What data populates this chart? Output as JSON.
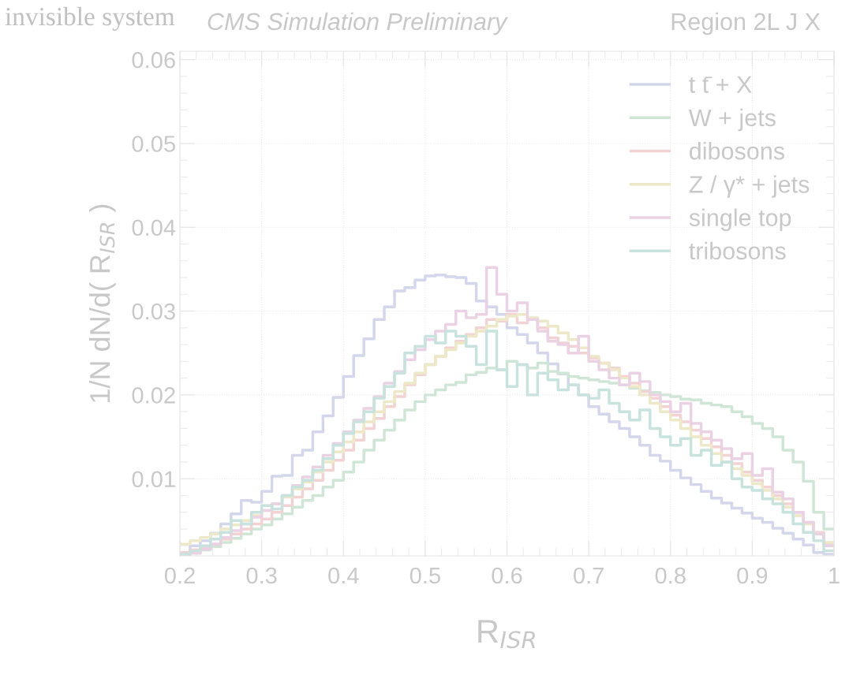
{
  "chart_data": {
    "type": "histogram",
    "title": "CMS Simulation Preliminary",
    "subtitle": "Region 2L J X",
    "annotations": [
      "invisible system"
    ],
    "xlabel": "R$_{ISR}$",
    "ylabel": "1/N dN/d( R$_{ISR}$ )",
    "bins": [
      0.2,
      0.2125,
      0.225,
      0.2375,
      0.25,
      0.2625,
      0.275,
      0.2875,
      0.3,
      0.3125,
      0.325,
      0.3375,
      0.35,
      0.3625,
      0.375,
      0.3875,
      0.4,
      0.4125,
      0.425,
      0.4375,
      0.45,
      0.4625,
      0.475,
      0.4875,
      0.5,
      0.5125,
      0.525,
      0.5375,
      0.55,
      0.5625,
      0.575,
      0.5875,
      0.6,
      0.6125,
      0.625,
      0.6375,
      0.65,
      0.6625,
      0.675,
      0.6875,
      0.7,
      0.7125,
      0.725,
      0.7375,
      0.75,
      0.7625,
      0.775,
      0.7875,
      0.8,
      0.8125,
      0.825,
      0.8375,
      0.85,
      0.8625,
      0.875,
      0.8875,
      0.9,
      0.9125,
      0.925,
      0.9375,
      0.95,
      0.9625,
      0.975,
      0.9875,
      1.0
    ],
    "series": [
      {
        "name": "t t̄ + X",
        "color": "#d4d6ec",
        "values": [
          0.0012,
          0.002,
          0.0026,
          0.0035,
          0.0046,
          0.0058,
          0.0074,
          0.0072,
          0.0085,
          0.0103,
          0.0104,
          0.0128,
          0.0134,
          0.0156,
          0.0175,
          0.0197,
          0.0222,
          0.0247,
          0.0267,
          0.029,
          0.0305,
          0.0324,
          0.0328,
          0.0337,
          0.0342,
          0.0343,
          0.0341,
          0.034,
          0.0333,
          0.0312,
          0.0305,
          0.0296,
          0.028,
          0.0272,
          0.0262,
          0.025,
          0.0237,
          0.0225,
          0.0212,
          0.02,
          0.0186,
          0.0177,
          0.0168,
          0.016,
          0.015,
          0.014,
          0.0128,
          0.0121,
          0.011,
          0.0101,
          0.0093,
          0.0085,
          0.0077,
          0.0071,
          0.0065,
          0.0059,
          0.0053,
          0.0048,
          0.0041,
          0.0035,
          0.0028,
          0.0021,
          0.0012,
          0.001
        ]
      },
      {
        "name": "W + jets",
        "color": "#cfe6d6",
        "values": [
          0.001,
          0.0012,
          0.0015,
          0.0019,
          0.0024,
          0.0029,
          0.0034,
          0.004,
          0.0045,
          0.0052,
          0.0058,
          0.0066,
          0.0074,
          0.008,
          0.009,
          0.0098,
          0.0108,
          0.012,
          0.0134,
          0.0146,
          0.0158,
          0.017,
          0.0182,
          0.0192,
          0.02,
          0.0206,
          0.0212,
          0.0215,
          0.0224,
          0.0227,
          0.0232,
          0.023,
          0.024,
          0.0236,
          0.0232,
          0.0238,
          0.0228,
          0.0226,
          0.0222,
          0.022,
          0.0218,
          0.0216,
          0.0214,
          0.0212,
          0.0208,
          0.0205,
          0.0203,
          0.02,
          0.0198,
          0.0195,
          0.0194,
          0.019,
          0.0188,
          0.0186,
          0.018,
          0.0174,
          0.0166,
          0.016,
          0.015,
          0.0134,
          0.012,
          0.0097,
          0.006,
          0.004
        ]
      },
      {
        "name": "dibosons",
        "color": "#f2d2d2",
        "values": [
          0.0012,
          0.0015,
          0.0018,
          0.0022,
          0.0028,
          0.0034,
          0.004,
          0.0046,
          0.0052,
          0.006,
          0.0068,
          0.0078,
          0.0088,
          0.0098,
          0.011,
          0.0122,
          0.0134,
          0.0146,
          0.016,
          0.0172,
          0.0186,
          0.0198,
          0.0212,
          0.0224,
          0.0236,
          0.0246,
          0.0256,
          0.0264,
          0.0272,
          0.028,
          0.029,
          0.0288,
          0.0296,
          0.0286,
          0.029,
          0.028,
          0.0268,
          0.0262,
          0.0258,
          0.025,
          0.0244,
          0.0238,
          0.0232,
          0.0222,
          0.0214,
          0.0204,
          0.0196,
          0.0186,
          0.0176,
          0.0168,
          0.0158,
          0.0148,
          0.0138,
          0.0128,
          0.0118,
          0.0108,
          0.0098,
          0.009,
          0.008,
          0.007,
          0.006,
          0.0048,
          0.0036,
          0.0022
        ]
      },
      {
        "name": "Z / γ* + jets",
        "color": "#ede8c8",
        "values": [
          0.0022,
          0.0026,
          0.003,
          0.0034,
          0.004,
          0.0045,
          0.005,
          0.0056,
          0.0062,
          0.007,
          0.0078,
          0.0088,
          0.0096,
          0.0108,
          0.012,
          0.0132,
          0.0144,
          0.0156,
          0.0168,
          0.018,
          0.0192,
          0.0204,
          0.0214,
          0.0226,
          0.0236,
          0.0246,
          0.0254,
          0.0262,
          0.027,
          0.0276,
          0.0282,
          0.029,
          0.0294,
          0.0296,
          0.0292,
          0.0288,
          0.0282,
          0.0274,
          0.0266,
          0.0256,
          0.0246,
          0.0238,
          0.023,
          0.022,
          0.021,
          0.02,
          0.019,
          0.018,
          0.017,
          0.016,
          0.015,
          0.014,
          0.013,
          0.012,
          0.0112,
          0.0104,
          0.0094,
          0.0086,
          0.0076,
          0.0066,
          0.0056,
          0.0046,
          0.0034,
          0.0024
        ]
      },
      {
        "name": "single top",
        "color": "#ead2e4",
        "values": [
          0.0008,
          0.0011,
          0.0016,
          0.0022,
          0.003,
          0.0038,
          0.0046,
          0.0054,
          0.0062,
          0.007,
          0.008,
          0.0092,
          0.0102,
          0.0114,
          0.0128,
          0.0142,
          0.0156,
          0.017,
          0.0184,
          0.0198,
          0.0214,
          0.0228,
          0.0242,
          0.0254,
          0.0266,
          0.0276,
          0.0284,
          0.03,
          0.0292,
          0.0296,
          0.0352,
          0.032,
          0.03,
          0.031,
          0.029,
          0.0276,
          0.0264,
          0.026,
          0.025,
          0.027,
          0.024,
          0.023,
          0.022,
          0.0212,
          0.0226,
          0.0216,
          0.02,
          0.0192,
          0.018,
          0.019,
          0.0166,
          0.0156,
          0.0146,
          0.0136,
          0.0124,
          0.013,
          0.0104,
          0.0112,
          0.0084,
          0.0076,
          0.006,
          0.0048,
          0.0034,
          0.002
        ]
      },
      {
        "name": "tribosons",
        "color": "#c8e2de",
        "values": [
          0.001,
          0.0014,
          0.002,
          0.0028,
          0.0036,
          0.005,
          0.0046,
          0.006,
          0.0068,
          0.0064,
          0.008,
          0.009,
          0.0098,
          0.011,
          0.0124,
          0.014,
          0.0154,
          0.0168,
          0.018,
          0.0196,
          0.021,
          0.0226,
          0.025,
          0.0258,
          0.027,
          0.0262,
          0.0276,
          0.027,
          0.0258,
          0.0236,
          0.0276,
          0.023,
          0.021,
          0.0236,
          0.02,
          0.0226,
          0.0218,
          0.0206,
          0.0212,
          0.02,
          0.0196,
          0.0206,
          0.019,
          0.018,
          0.017,
          0.0182,
          0.016,
          0.015,
          0.014,
          0.0148,
          0.0128,
          0.0134,
          0.0116,
          0.012,
          0.01,
          0.009,
          0.0086,
          0.0076,
          0.007,
          0.006,
          0.0046,
          0.0036,
          0.0026,
          0.0014
        ]
      }
    ],
    "xlim": [
      0.2,
      1.0
    ],
    "xticks": [
      0.2,
      0.3,
      0.4,
      0.5,
      0.6,
      0.7,
      0.8,
      0.9,
      1
    ],
    "ylim": [
      0.0008,
      0.061
    ],
    "yticks": [
      0.01,
      0.02,
      0.03,
      0.04,
      0.05,
      0.06
    ],
    "grid": true,
    "legend": "top right"
  }
}
